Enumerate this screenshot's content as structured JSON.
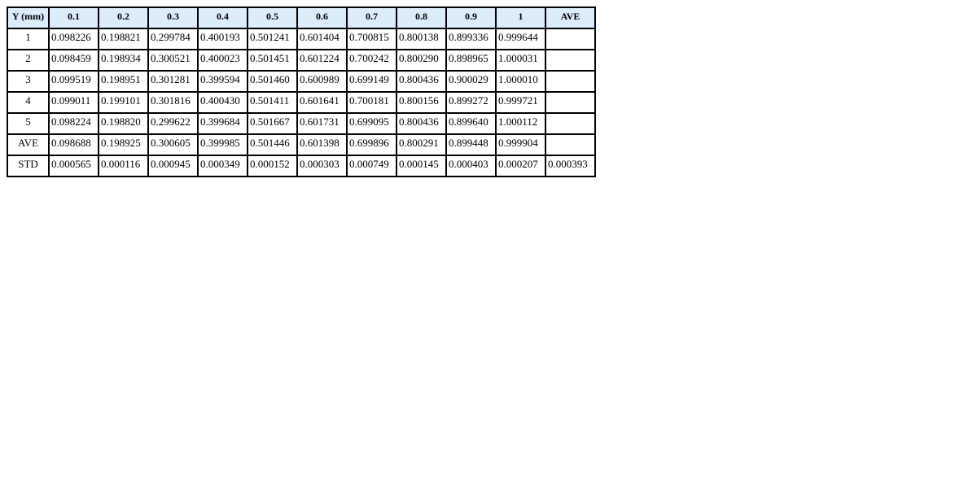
{
  "table": {
    "headers": [
      "Y (mm)",
      "0.1",
      "0.2",
      "0.3",
      "0.4",
      "0.5",
      "0.6",
      "0.7",
      "0.8",
      "0.9",
      "1",
      "AVE"
    ],
    "rows": [
      {
        "label": "1",
        "values": [
          "0.098226",
          "0.198821",
          "0.299784",
          "0.400193",
          "0.501241",
          "0.601404",
          "0.700815",
          "0.800138",
          "0.899336",
          "0.999644",
          ""
        ]
      },
      {
        "label": "2",
        "values": [
          "0.098459",
          "0.198934",
          "0.300521",
          "0.400023",
          "0.501451",
          "0.601224",
          "0.700242",
          "0.800290",
          "0.898965",
          "1.000031",
          ""
        ]
      },
      {
        "label": "3",
        "values": [
          "0.099519",
          "0.198951",
          "0.301281",
          "0.399594",
          "0.501460",
          "0.600989",
          "0.699149",
          "0.800436",
          "0.900029",
          "1.000010",
          ""
        ]
      },
      {
        "label": "4",
        "values": [
          "0.099011",
          "0.199101",
          "0.301816",
          "0.400430",
          "0.501411",
          "0.601641",
          "0.700181",
          "0.800156",
          "0.899272",
          "0.999721",
          ""
        ]
      },
      {
        "label": "5",
        "values": [
          "0.098224",
          "0.198820",
          "0.299622",
          "0.399684",
          "0.501667",
          "0.601731",
          "0.699095",
          "0.800436",
          "0.899640",
          "1.000112",
          ""
        ]
      },
      {
        "label": "AVE",
        "values": [
          "0.098688",
          "0.198925",
          "0.300605",
          "0.399985",
          "0.501446",
          "0.601398",
          "0.699896",
          "0.800291",
          "0.899448",
          "0.999904",
          ""
        ]
      },
      {
        "label": "STD",
        "values": [
          "0.000565",
          "0.000116",
          "0.000945",
          "0.000349",
          "0.000152",
          "0.000303",
          "0.000749",
          "0.000145",
          "0.000403",
          "0.000207",
          "0.000393"
        ]
      }
    ]
  }
}
